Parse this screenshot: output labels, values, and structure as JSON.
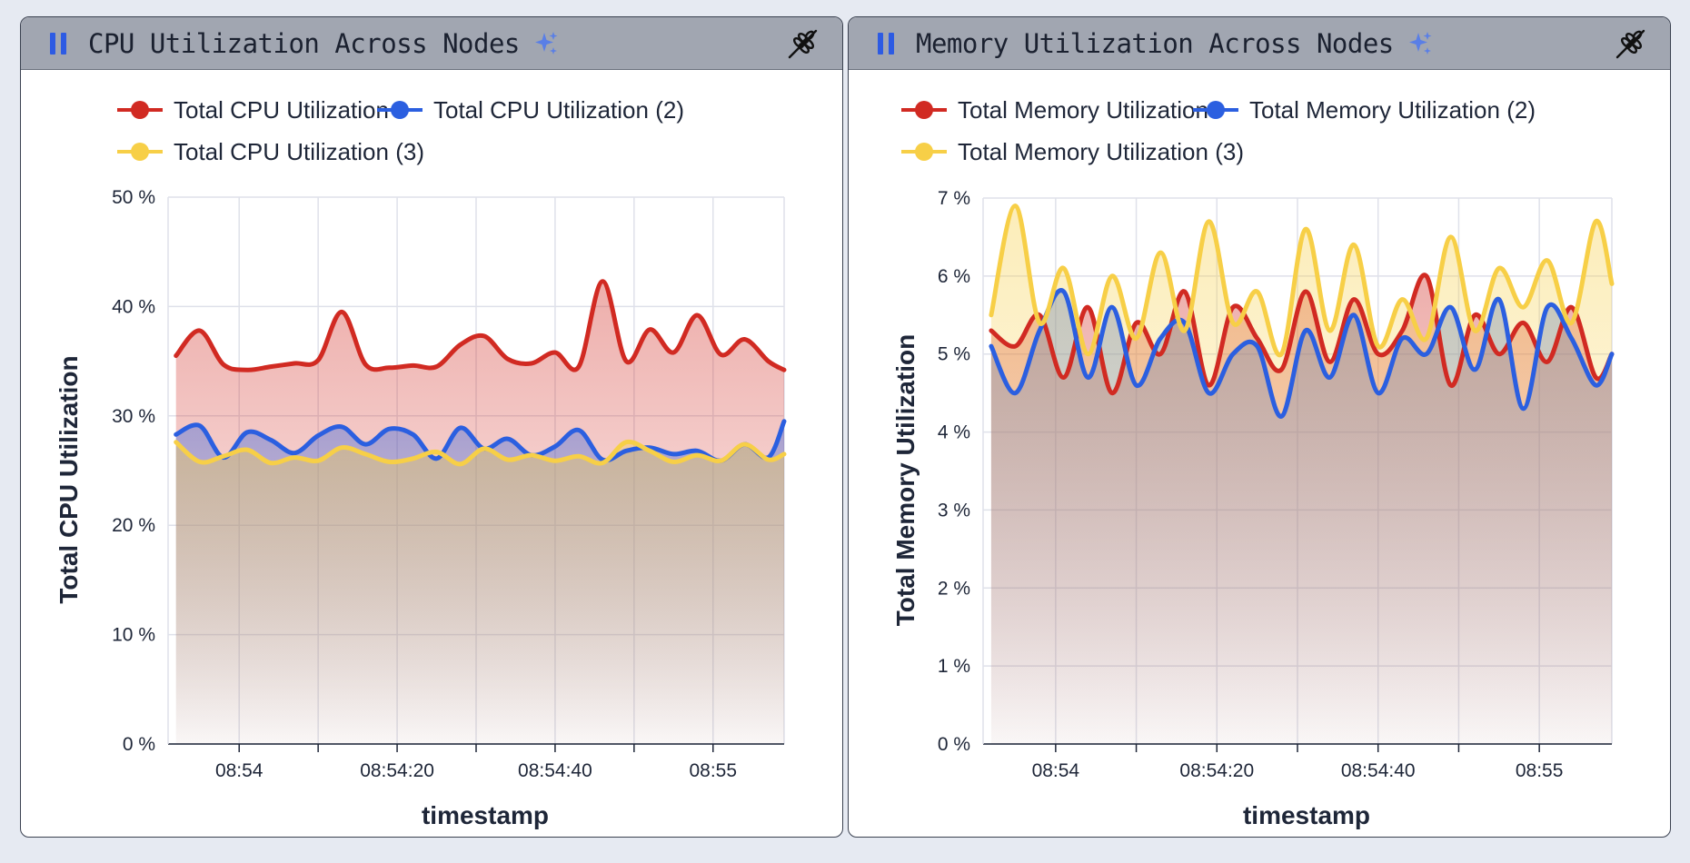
{
  "panels": [
    {
      "title": "CPU Utilization Across Nodes",
      "icons": [
        "pause-icon",
        "sparkle-icon",
        "wheat-icon"
      ]
    },
    {
      "title": "Memory Utilization Across Nodes",
      "icons": [
        "pause-icon",
        "sparkle-icon",
        "wheat-icon"
      ]
    }
  ],
  "colors": {
    "red": "#d12a22",
    "blue": "#2b5fe0",
    "yellow": "#f7cf47",
    "grid": "#dfe1ea",
    "header": "#a1a6b1",
    "accent": "#2d5be3"
  },
  "chart_data": [
    {
      "type": "area",
      "xlabel": "timestamp",
      "ylabel": "Total CPU Utilization",
      "x_ticks": [
        "08:54",
        "08:54:20",
        "08:54:40",
        "08:55"
      ],
      "y_ticks": [
        "0 %",
        "10 %",
        "20 %",
        "30 %",
        "40 %",
        "50 %"
      ],
      "ylim": [
        0,
        50
      ],
      "x_range": [
        "08:53:51",
        "08:55:09"
      ],
      "legend_position": "top",
      "grid": true,
      "series": [
        {
          "name": "Total CPU Utilization",
          "color": "#d12a22",
          "x": [
            "08:53:52",
            "08:53:55",
            "08:53:58",
            "08:54:01",
            "08:54:04",
            "08:54:07",
            "08:54:10",
            "08:54:13",
            "08:54:16",
            "08:54:19",
            "08:54:22",
            "08:54:25",
            "08:54:28",
            "08:54:31",
            "08:54:34",
            "08:54:37",
            "08:54:40",
            "08:54:43",
            "08:54:46",
            "08:54:49",
            "08:54:52",
            "08:54:55",
            "08:54:58",
            "08:55:01",
            "08:55:04",
            "08:55:07",
            "08:55:09"
          ],
          "values": [
            35.5,
            37.8,
            34.7,
            34.2,
            34.5,
            34.8,
            35.1,
            39.5,
            34.7,
            34.4,
            34.6,
            34.5,
            36.5,
            37.3,
            35.2,
            34.8,
            35.8,
            34.5,
            42.3,
            35.0,
            37.9,
            35.8,
            39.2,
            35.6,
            37.0,
            35.0,
            34.2
          ]
        },
        {
          "name": "Total CPU Utilization (2)",
          "color": "#2b5fe0",
          "x": [
            "08:53:52",
            "08:53:55",
            "08:53:58",
            "08:54:01",
            "08:54:04",
            "08:54:07",
            "08:54:10",
            "08:54:13",
            "08:54:16",
            "08:54:19",
            "08:54:22",
            "08:54:25",
            "08:54:28",
            "08:54:31",
            "08:54:34",
            "08:54:37",
            "08:54:40",
            "08:54:43",
            "08:54:46",
            "08:54:49",
            "08:54:52",
            "08:54:55",
            "08:54:58",
            "08:55:01",
            "08:55:04",
            "08:55:07",
            "08:55:09"
          ],
          "values": [
            28.3,
            29.1,
            26.2,
            28.5,
            27.8,
            26.6,
            28.2,
            29.0,
            27.4,
            28.8,
            28.3,
            26.1,
            28.9,
            27.0,
            27.9,
            26.4,
            27.2,
            28.7,
            26.0,
            26.8,
            27.1,
            26.5,
            26.8,
            25.9,
            27.4,
            26.2,
            29.5
          ]
        },
        {
          "name": "Total CPU Utilization (3)",
          "color": "#f7cf47",
          "x": [
            "08:53:52",
            "08:53:55",
            "08:53:58",
            "08:54:01",
            "08:54:04",
            "08:54:07",
            "08:54:10",
            "08:54:13",
            "08:54:16",
            "08:54:19",
            "08:54:22",
            "08:54:25",
            "08:54:28",
            "08:54:31",
            "08:54:34",
            "08:54:37",
            "08:54:40",
            "08:54:43",
            "08:54:46",
            "08:54:49",
            "08:54:52",
            "08:54:55",
            "08:54:58",
            "08:55:01",
            "08:55:04",
            "08:55:07",
            "08:55:09"
          ],
          "values": [
            27.6,
            25.8,
            26.3,
            26.9,
            25.7,
            26.2,
            25.9,
            27.1,
            26.5,
            25.8,
            26.1,
            26.7,
            25.6,
            27.0,
            26.0,
            26.4,
            25.9,
            26.3,
            25.7,
            27.6,
            26.8,
            25.8,
            26.4,
            25.9,
            27.4,
            26.0,
            26.5
          ]
        }
      ]
    },
    {
      "type": "area",
      "xlabel": "timestamp",
      "ylabel": "Total Memory Utilization",
      "x_ticks": [
        "08:54",
        "08:54:20",
        "08:54:40",
        "08:55"
      ],
      "y_ticks": [
        "0 %",
        "1 %",
        "2 %",
        "3 %",
        "4 %",
        "5 %",
        "6 %",
        "7 %"
      ],
      "ylim": [
        0,
        7
      ],
      "x_range": [
        "08:53:51",
        "08:55:09"
      ],
      "legend_position": "top",
      "grid": true,
      "series": [
        {
          "name": "Total Memory Utilization",
          "color": "#d12a22",
          "x": [
            "08:53:52",
            "08:53:55",
            "08:53:58",
            "08:54:01",
            "08:54:04",
            "08:54:07",
            "08:54:10",
            "08:54:13",
            "08:54:16",
            "08:54:19",
            "08:54:22",
            "08:54:25",
            "08:54:28",
            "08:54:31",
            "08:54:34",
            "08:54:37",
            "08:54:40",
            "08:54:43",
            "08:54:46",
            "08:54:49",
            "08:54:52",
            "08:54:55",
            "08:54:58",
            "08:55:01",
            "08:55:04",
            "08:55:07",
            "08:55:09"
          ],
          "values": [
            5.3,
            5.1,
            5.5,
            4.7,
            5.6,
            4.5,
            5.4,
            5.0,
            5.8,
            4.6,
            5.6,
            5.2,
            4.8,
            5.8,
            4.9,
            5.7,
            5.0,
            5.3,
            6.0,
            4.6,
            5.5,
            5.0,
            5.4,
            4.9,
            5.6,
            4.7,
            5.0
          ]
        },
        {
          "name": "Total Memory Utilization (2)",
          "color": "#2b5fe0",
          "x": [
            "08:53:52",
            "08:53:55",
            "08:53:58",
            "08:54:01",
            "08:54:04",
            "08:54:07",
            "08:54:10",
            "08:54:13",
            "08:54:16",
            "08:54:19",
            "08:54:22",
            "08:54:25",
            "08:54:28",
            "08:54:31",
            "08:54:34",
            "08:54:37",
            "08:54:40",
            "08:54:43",
            "08:54:46",
            "08:54:49",
            "08:54:52",
            "08:54:55",
            "08:54:58",
            "08:55:01",
            "08:55:04",
            "08:55:07",
            "08:55:09"
          ],
          "values": [
            5.1,
            4.5,
            5.3,
            5.8,
            4.7,
            5.6,
            4.6,
            5.2,
            5.4,
            4.5,
            5.0,
            5.1,
            4.2,
            5.3,
            4.7,
            5.5,
            4.5,
            5.2,
            5.0,
            5.6,
            4.8,
            5.7,
            4.3,
            5.6,
            5.2,
            4.6,
            5.0
          ]
        },
        {
          "name": "Total Memory Utilization (3)",
          "color": "#f7cf47",
          "x": [
            "08:53:52",
            "08:53:55",
            "08:53:58",
            "08:54:01",
            "08:54:04",
            "08:54:07",
            "08:54:10",
            "08:54:13",
            "08:54:16",
            "08:54:19",
            "08:54:22",
            "08:54:25",
            "08:54:28",
            "08:54:31",
            "08:54:34",
            "08:54:37",
            "08:54:40",
            "08:54:43",
            "08:54:46",
            "08:54:49",
            "08:54:52",
            "08:54:55",
            "08:54:58",
            "08:55:01",
            "08:55:04",
            "08:55:07",
            "08:55:09"
          ],
          "values": [
            5.5,
            6.9,
            5.4,
            6.1,
            5.0,
            6.0,
            5.2,
            6.3,
            5.3,
            6.7,
            5.4,
            5.8,
            5.0,
            6.6,
            5.3,
            6.4,
            5.1,
            5.7,
            5.2,
            6.5,
            5.3,
            6.1,
            5.6,
            6.2,
            5.4,
            6.7,
            5.9
          ]
        }
      ]
    }
  ]
}
